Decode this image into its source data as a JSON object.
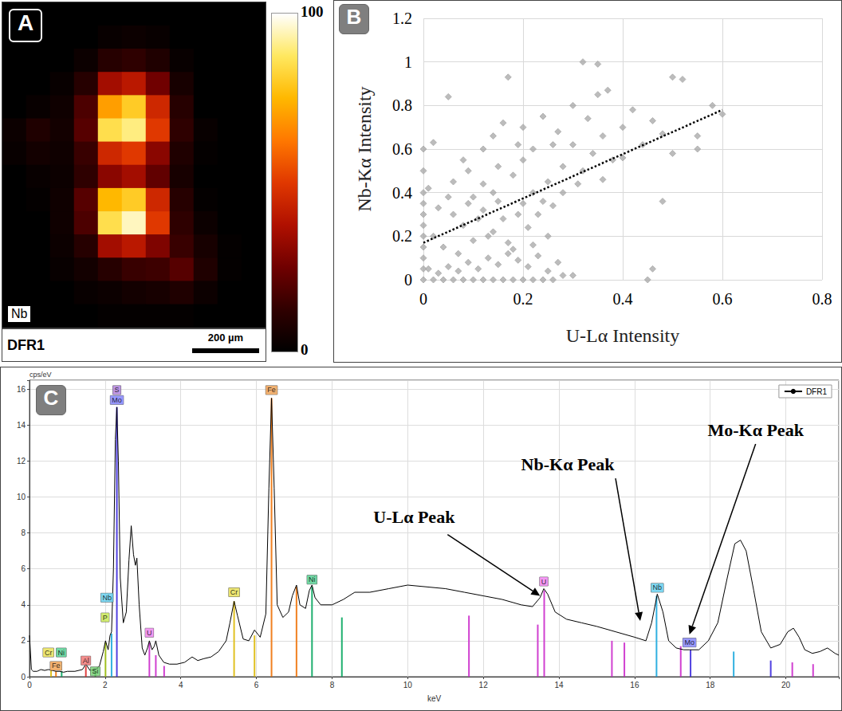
{
  "chart_data": [
    {
      "type": "heatmap",
      "panel": "A",
      "element": "Nb",
      "sample": "DFR1",
      "scale_bar": "200 µm",
      "tick_labels": false,
      "cells": [
        [
          0,
          0,
          0,
          0,
          0,
          0,
          0,
          0,
          0,
          0,
          0
        ],
        [
          0,
          0,
          0,
          0,
          2,
          3,
          2,
          0,
          0,
          0,
          0
        ],
        [
          0,
          0,
          0,
          3,
          10,
          12,
          8,
          2,
          0,
          0,
          0
        ],
        [
          0,
          0,
          2,
          10,
          35,
          40,
          25,
          6,
          0,
          0,
          0
        ],
        [
          0,
          2,
          4,
          18,
          70,
          80,
          45,
          10,
          0,
          0,
          0
        ],
        [
          3,
          8,
          5,
          20,
          85,
          90,
          50,
          12,
          2,
          0,
          0
        ],
        [
          2,
          5,
          4,
          14,
          45,
          50,
          30,
          8,
          1,
          0,
          0
        ],
        [
          0,
          2,
          3,
          12,
          30,
          35,
          22,
          6,
          0,
          0,
          0
        ],
        [
          0,
          1,
          4,
          20,
          75,
          80,
          45,
          10,
          1,
          0,
          0
        ],
        [
          0,
          0,
          4,
          18,
          85,
          95,
          50,
          12,
          3,
          0,
          0
        ],
        [
          0,
          0,
          3,
          10,
          35,
          40,
          28,
          14,
          6,
          1,
          0
        ],
        [
          0,
          0,
          2,
          5,
          10,
          14,
          15,
          20,
          8,
          1,
          0
        ],
        [
          0,
          0,
          0,
          2,
          3,
          5,
          6,
          8,
          3,
          0,
          0
        ],
        [
          0,
          0,
          0,
          0,
          1,
          1,
          1,
          1,
          0,
          0,
          0
        ]
      ],
      "colorbar": {
        "range": [
          0,
          100
        ],
        "ticks": [
          0,
          100
        ]
      }
    },
    {
      "type": "scatter",
      "panel": "B",
      "xlabel": "U-Lα Intensity",
      "ylabel": "Nb-Kα Intensity",
      "xlim": [
        0,
        0.8
      ],
      "xticks": [
        0,
        0.2,
        0.4,
        0.6,
        0.8
      ],
      "ylim": [
        0,
        1.2
      ],
      "yticks": [
        0,
        0.2,
        0.4,
        0.6,
        0.8,
        1,
        1.2
      ],
      "grid": true,
      "series": [
        {
          "type": "scatter",
          "color": "#a6a6a6",
          "marker": "diamond",
          "x": [
            0,
            0.02,
            0.04,
            0.06,
            0.08,
            0.1,
            0.12,
            0.14,
            0.16,
            0.18,
            0.2,
            0.22,
            0.24,
            0.26,
            0.28,
            0.3,
            0.01,
            0.03,
            0.05,
            0.07,
            0.09,
            0.11,
            0.13,
            0.15,
            0.17,
            0.19,
            0.21,
            0.23,
            0.25,
            0.27,
            0,
            0,
            0,
            0,
            0,
            0,
            0,
            0,
            0,
            0,
            0.02,
            0.04,
            0.06,
            0.08,
            0.1,
            0.12,
            0.14,
            0.16,
            0.18,
            0.2,
            0.03,
            0.05,
            0.07,
            0.09,
            0.11,
            0.13,
            0.15,
            0.17,
            0.19,
            0.21,
            0.23,
            0.25,
            0.22,
            0.24,
            0.26,
            0.01,
            0.06,
            0.09,
            0.12,
            0.15,
            0.18,
            0.2,
            0.22,
            0.25,
            0.28,
            0.3,
            0.32,
            0.34,
            0.36,
            0.38,
            0.12,
            0.14,
            0.16,
            0.2,
            0.24,
            0.27,
            0.3,
            0.33,
            0.35,
            0.4,
            0.42,
            0.44,
            0.46,
            0.48,
            0.5,
            0.52,
            0.55,
            0.58,
            0.6,
            0.32,
            0.35,
            0.37,
            0.17,
            0.05,
            0.02,
            0.46,
            0.45,
            0.48,
            0.5,
            0.55,
            0.28,
            0.31,
            0.26,
            0.22,
            0.19,
            0.14,
            0.1,
            0.08,
            0.36,
            0.4
          ],
          "values": [
            0,
            0,
            0,
            0,
            0,
            0,
            0,
            0,
            0,
            0,
            0,
            0,
            0,
            0,
            0.02,
            0.02,
            0.05,
            0.03,
            0.06,
            0.04,
            0.08,
            0.05,
            0.1,
            0.07,
            0.12,
            0.09,
            0.06,
            0.11,
            0.04,
            0.08,
            0.05,
            0.1,
            0.15,
            0.2,
            0.25,
            0.3,
            0.35,
            0.4,
            0.5,
            0.6,
            0.2,
            0.15,
            0.3,
            0.25,
            0.18,
            0.32,
            0.22,
            0.28,
            0.14,
            0.35,
            0.33,
            0.38,
            0.12,
            0.35,
            0.28,
            0.2,
            0.36,
            0.17,
            0.3,
            0.24,
            0.3,
            0.2,
            0.16,
            0.36,
            0.34,
            0.42,
            0.45,
            0.5,
            0.44,
            0.52,
            0.48,
            0.55,
            0.6,
            0.45,
            0.52,
            0.62,
            0.5,
            0.58,
            0.66,
            0.55,
            0.6,
            0.66,
            0.72,
            0.7,
            0.75,
            0.68,
            0.8,
            0.74,
            0.85,
            0.7,
            0.78,
            0.62,
            0.73,
            0.67,
            0.58,
            0.92,
            0.6,
            0.8,
            0.76,
            1,
            0.99,
            0.87,
            0.93,
            0.84,
            0.63,
            0.05,
            0,
            0.36,
            0.93,
            0.66,
            0.4,
            0.44,
            0.62,
            0.4,
            0.62,
            0.4,
            0.38,
            0.55,
            0.46,
            0.56
          ]
        },
        {
          "type": "line",
          "color": "#000000",
          "line_style": "dotted",
          "x": [
            0,
            0.6
          ],
          "values": [
            0.17,
            0.78
          ]
        }
      ]
    },
    {
      "type": "line",
      "panel": "C",
      "xlabel": "keV",
      "ylabel": "cps/eV",
      "xlim": [
        0,
        21.4
      ],
      "xticks": [
        0,
        2,
        4,
        6,
        8,
        10,
        12,
        14,
        16,
        18,
        20
      ],
      "ylim": [
        0,
        16.5
      ],
      "yticks": [
        0,
        2,
        4,
        6,
        8,
        10,
        12,
        14,
        16
      ],
      "grid": true,
      "legend": "top-right",
      "series": [
        {
          "name": "DFR1",
          "color": "#000000",
          "x": [
            0,
            0.05,
            0.1,
            0.2,
            0.3,
            0.4,
            0.5,
            0.6,
            0.7,
            0.8,
            0.9,
            1.0,
            1.2,
            1.4,
            1.49,
            1.6,
            1.74,
            1.85,
            1.95,
            2.01,
            2.08,
            2.13,
            2.17,
            2.22,
            2.27,
            2.31,
            2.35,
            2.4,
            2.48,
            2.56,
            2.63,
            2.69,
            2.75,
            2.8,
            2.84,
            2.9,
            2.98,
            3.05,
            3.12,
            3.17,
            3.24,
            3.3,
            3.34,
            3.42,
            3.55,
            3.7,
            3.9,
            4.1,
            4.3,
            4.45,
            4.6,
            4.8,
            5.0,
            5.2,
            5.3,
            5.41,
            5.5,
            5.65,
            5.8,
            5.95,
            6.1,
            6.25,
            6.33,
            6.4,
            6.47,
            6.55,
            6.7,
            6.85,
            6.95,
            7.06,
            7.15,
            7.3,
            7.4,
            7.47,
            7.55,
            7.7,
            8.0,
            8.3,
            8.6,
            9.0,
            9.5,
            10.0,
            10.5,
            11.0,
            11.5,
            12.0,
            12.5,
            13.0,
            13.3,
            13.5,
            13.6,
            13.7,
            13.9,
            14.2,
            14.6,
            15.0,
            15.5,
            16.0,
            16.3,
            16.45,
            16.6,
            16.75,
            16.9,
            17.1,
            17.3,
            17.45,
            17.7,
            17.95,
            18.2,
            18.45,
            18.65,
            18.8,
            18.95,
            19.15,
            19.35,
            19.6,
            19.85,
            20.05,
            20.2,
            20.35,
            20.5,
            20.7,
            20.9,
            21.1,
            21.3,
            21.4
          ],
          "values": [
            2.3,
            0.4,
            0.3,
            0.3,
            0.4,
            0.35,
            0.4,
            0.35,
            0.3,
            0.3,
            0.25,
            0.3,
            0.3,
            0.4,
            0.7,
            0.35,
            0.4,
            0.6,
            1.4,
            2.0,
            1.5,
            2.3,
            2.5,
            6.0,
            13.2,
            15.0,
            12.0,
            5.5,
            3.0,
            3.6,
            6.5,
            8.4,
            6.8,
            6.2,
            6.6,
            4.0,
            1.6,
            1.2,
            1.6,
            2.0,
            1.5,
            1.7,
            2.0,
            1.2,
            0.8,
            0.7,
            0.7,
            0.8,
            1.1,
            0.9,
            1.0,
            1.1,
            1.4,
            2.0,
            3.0,
            4.2,
            3.4,
            2.1,
            2.0,
            2.6,
            2.2,
            3.5,
            10.5,
            15.5,
            10.5,
            4.0,
            3.3,
            3.6,
            4.5,
            5.1,
            4.0,
            3.8,
            4.8,
            5.1,
            4.4,
            4.0,
            4.0,
            4.3,
            4.7,
            4.7,
            4.9,
            5.1,
            5.0,
            4.9,
            4.7,
            4.5,
            4.3,
            4.0,
            3.9,
            4.4,
            4.9,
            4.6,
            3.6,
            3.2,
            3.0,
            2.8,
            2.5,
            2.2,
            2.0,
            3.0,
            4.6,
            3.6,
            2.0,
            1.6,
            1.5,
            1.5,
            1.5,
            2.0,
            3.0,
            5.5,
            7.4,
            7.6,
            7.0,
            4.8,
            2.5,
            1.6,
            1.8,
            2.5,
            2.7,
            2.2,
            1.5,
            1.3,
            1.4,
            1.6,
            1.3,
            1.2
          ]
        }
      ],
      "element_lines": [
        {
          "x": 0.57,
          "height": 0.4,
          "color": "#e0c020"
        },
        {
          "x": 0.7,
          "height": 0.3,
          "color": "#f08020"
        },
        {
          "x": 0.85,
          "height": 0.3,
          "color": "#20b070"
        },
        {
          "x": 1.49,
          "height": 0.6,
          "color": "#e04040"
        },
        {
          "x": 1.74,
          "height": 0.3,
          "color": "#40b040"
        },
        {
          "x": 2.01,
          "height": 1.9,
          "color": "#a0c020"
        },
        {
          "x": 2.17,
          "height": 2.4,
          "color": "#30b0e0"
        },
        {
          "x": 2.31,
          "height": 15.0,
          "color": "#5040e0"
        },
        {
          "x": 3.17,
          "height": 1.9,
          "color": "#d040d0"
        },
        {
          "x": 3.34,
          "height": 1.2,
          "color": "#d040d0"
        },
        {
          "x": 3.56,
          "height": 0.6,
          "color": "#d040d0"
        },
        {
          "x": 5.41,
          "height": 4.2,
          "color": "#e0c020"
        },
        {
          "x": 5.95,
          "height": 2.3,
          "color": "#e0c020"
        },
        {
          "x": 6.4,
          "height": 15.5,
          "color": "#f08020"
        },
        {
          "x": 7.06,
          "height": 5.0,
          "color": "#f08020"
        },
        {
          "x": 7.47,
          "height": 5.0,
          "color": "#20b070"
        },
        {
          "x": 8.26,
          "height": 3.3,
          "color": "#20b070"
        },
        {
          "x": 11.62,
          "height": 3.4,
          "color": "#d040d0"
        },
        {
          "x": 13.44,
          "height": 2.9,
          "color": "#d040d0"
        },
        {
          "x": 13.61,
          "height": 4.8,
          "color": "#d040d0"
        },
        {
          "x": 15.4,
          "height": 2.0,
          "color": "#d040d0"
        },
        {
          "x": 15.73,
          "height": 1.9,
          "color": "#d040d0"
        },
        {
          "x": 16.58,
          "height": 4.5,
          "color": "#30b0e0"
        },
        {
          "x": 17.22,
          "height": 1.7,
          "color": "#d040d0"
        },
        {
          "x": 17.48,
          "height": 1.5,
          "color": "#5040e0"
        },
        {
          "x": 18.62,
          "height": 1.4,
          "color": "#30b0e0"
        },
        {
          "x": 19.6,
          "height": 0.9,
          "color": "#5040e0"
        },
        {
          "x": 20.17,
          "height": 0.8,
          "color": "#d040d0"
        },
        {
          "x": 20.72,
          "height": 0.7,
          "color": "#d040d0"
        }
      ],
      "element_labels": [
        {
          "text": "Cr",
          "x": 0.5,
          "y": 1.35,
          "color": "#e8e050"
        },
        {
          "text": "Fe",
          "x": 0.7,
          "y": 0.6,
          "color": "#f0a050"
        },
        {
          "text": "Ni",
          "x": 0.84,
          "y": 1.35,
          "color": "#50d090"
        },
        {
          "text": "Al",
          "x": 1.49,
          "y": 0.9,
          "color": "#f07070"
        },
        {
          "text": "Si",
          "x": 1.74,
          "y": 0.3,
          "color": "#70d070"
        },
        {
          "text": "P",
          "x": 2.0,
          "y": 3.3,
          "color": "#c8e850"
        },
        {
          "text": "Nb",
          "x": 2.05,
          "y": 4.4,
          "color": "#60d0f0"
        },
        {
          "text": "S",
          "x": 2.31,
          "y": 15.95,
          "color": "#b080e0"
        },
        {
          "text": "Mo",
          "x": 2.31,
          "y": 15.4,
          "color": "#8080ff"
        },
        {
          "text": "U",
          "x": 3.17,
          "y": 2.45,
          "color": "#f080f0"
        },
        {
          "text": "Cr",
          "x": 5.41,
          "y": 4.7,
          "color": "#e8e050"
        },
        {
          "text": "Fe",
          "x": 6.4,
          "y": 15.95,
          "color": "#f0a050"
        },
        {
          "text": "Ni",
          "x": 7.47,
          "y": 5.4,
          "color": "#50d090"
        },
        {
          "text": "U",
          "x": 13.6,
          "y": 5.3,
          "color": "#f080f0"
        },
        {
          "text": "Nb",
          "x": 16.6,
          "y": 4.95,
          "color": "#60d0f0"
        },
        {
          "text": "Mo",
          "x": 17.45,
          "y": 1.9,
          "color": "#8080ff"
        }
      ],
      "annotations": [
        {
          "text": "U-Lα Peak",
          "x": 13.5,
          "y": 4.5
        },
        {
          "text": "Nb-Kα Peak",
          "x": 16.15,
          "y": 3.1
        },
        {
          "text": "Mo-Kα Peak",
          "x": 17.45,
          "y": 2.35
        }
      ]
    }
  ]
}
